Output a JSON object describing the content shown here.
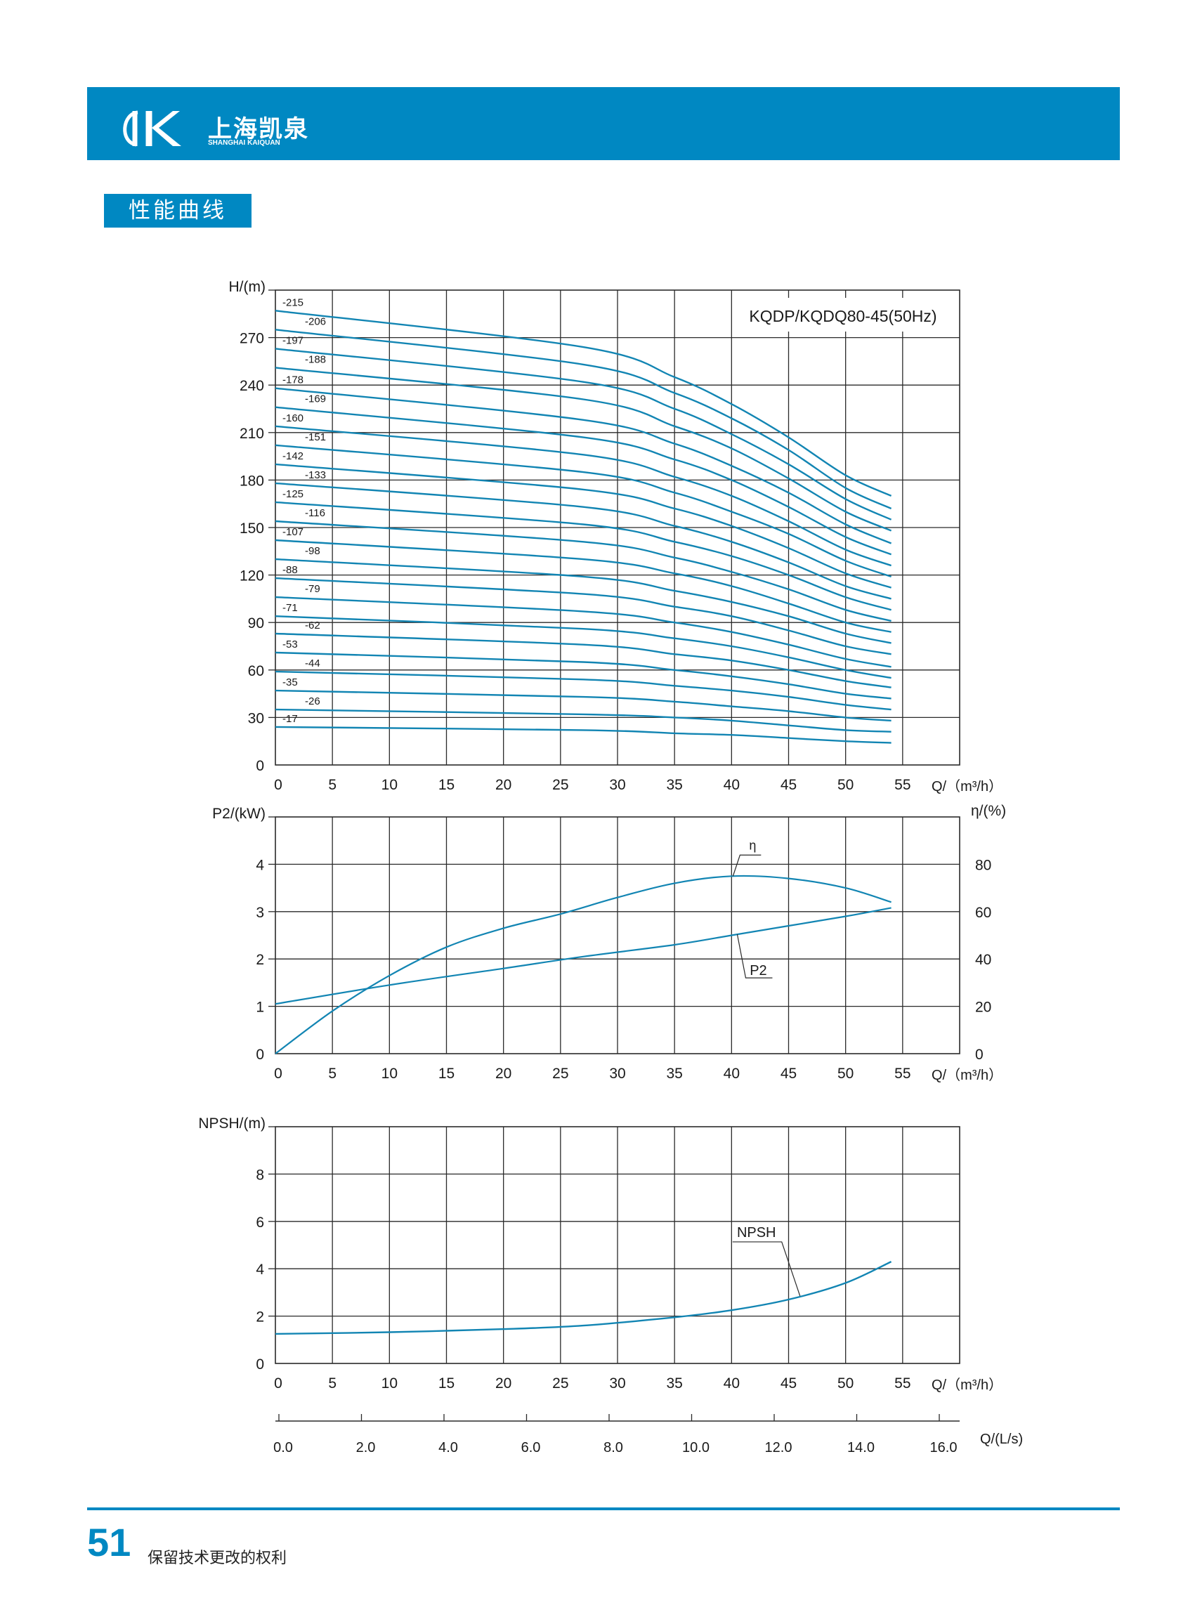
{
  "header": {
    "logo_cn": "上海凯泉",
    "logo_en": "SHANGHAI KAIQUAN",
    "brand_color": "#0088c2"
  },
  "section_title": "性能曲线",
  "footer": {
    "page_number": "51",
    "note": "保留技术更改的权利"
  },
  "chart_data": [
    {
      "type": "line",
      "id": "head",
      "title": "KQDP/KQDQ80-45(50Hz)",
      "ylabel": "H/(m)",
      "xlabel": "Q/（m³/h）",
      "xlim": [
        0,
        60
      ],
      "ylim": [
        0,
        300
      ],
      "x_ticks": [
        0,
        5,
        10,
        15,
        20,
        25,
        30,
        35,
        40,
        45,
        50,
        55
      ],
      "y_ticks": [
        0,
        30,
        60,
        90,
        120,
        150,
        180,
        210,
        240,
        270
      ],
      "grid": true,
      "line_color": "#1285b3",
      "series": [
        {
          "name": "-215",
          "x": [
            0,
            27,
            35,
            40,
            45,
            50,
            54
          ],
          "y": [
            287,
            264,
            245,
            228,
            207,
            183,
            170
          ]
        },
        {
          "name": "-206",
          "x": [
            0,
            27,
            35,
            40,
            45,
            50,
            54
          ],
          "y": [
            275,
            253,
            235,
            219,
            199,
            175,
            162
          ]
        },
        {
          "name": "-197",
          "x": [
            0,
            27,
            35,
            40,
            45,
            50,
            54
          ],
          "y": [
            263,
            242,
            225,
            209,
            190,
            168,
            155
          ]
        },
        {
          "name": "-188",
          "x": [
            0,
            27,
            35,
            40,
            45,
            50,
            54
          ],
          "y": [
            251,
            231,
            214,
            200,
            181,
            160,
            148
          ]
        },
        {
          "name": "-178",
          "x": [
            0,
            27,
            35,
            40,
            45,
            50,
            54
          ],
          "y": [
            238,
            218,
            203,
            189,
            172,
            152,
            140
          ]
        },
        {
          "name": "-169",
          "x": [
            0,
            27,
            35,
            40,
            45,
            50,
            54
          ],
          "y": [
            226,
            207,
            193,
            180,
            163,
            144,
            133
          ]
        },
        {
          "name": "-160",
          "x": [
            0,
            27,
            35,
            40,
            45,
            50,
            54
          ],
          "y": [
            214,
            196,
            182,
            170,
            154,
            136,
            126
          ]
        },
        {
          "name": "-151",
          "x": [
            0,
            27,
            35,
            40,
            45,
            50,
            54
          ],
          "y": [
            202,
            185,
            172,
            160,
            146,
            129,
            119
          ]
        },
        {
          "name": "-142",
          "x": [
            0,
            27,
            35,
            40,
            45,
            50,
            54
          ],
          "y": [
            190,
            174,
            162,
            151,
            137,
            121,
            112
          ]
        },
        {
          "name": "-133",
          "x": [
            0,
            27,
            35,
            40,
            45,
            50,
            54
          ],
          "y": [
            178,
            163,
            151,
            141,
            128,
            113,
            105
          ]
        },
        {
          "name": "-125",
          "x": [
            0,
            27,
            35,
            40,
            45,
            50,
            54
          ],
          "y": [
            166,
            152,
            141,
            132,
            120,
            106,
            98
          ]
        },
        {
          "name": "-116",
          "x": [
            0,
            27,
            35,
            40,
            45,
            50,
            54
          ],
          "y": [
            154,
            141,
            131,
            122,
            111,
            98,
            91
          ]
        },
        {
          "name": "-107",
          "x": [
            0,
            27,
            35,
            40,
            45,
            50,
            54
          ],
          "y": [
            142,
            130,
            121,
            113,
            102,
            90,
            84
          ]
        },
        {
          "name": "-98",
          "x": [
            0,
            27,
            35,
            40,
            45,
            50,
            54
          ],
          "y": [
            130,
            119,
            110,
            103,
            94,
            83,
            77
          ]
        },
        {
          "name": "-88",
          "x": [
            0,
            27,
            35,
            40,
            45,
            50,
            54
          ],
          "y": [
            118,
            108,
            100,
            94,
            85,
            75,
            70
          ]
        },
        {
          "name": "-79",
          "x": [
            0,
            27,
            35,
            40,
            45,
            50,
            54
          ],
          "y": [
            106,
            97,
            90,
            84,
            76,
            67,
            62
          ]
        },
        {
          "name": "-71",
          "x": [
            0,
            27,
            35,
            40,
            45,
            50,
            54
          ],
          "y": [
            94,
            86,
            80,
            75,
            68,
            60,
            55
          ]
        },
        {
          "name": "-62",
          "x": [
            0,
            27,
            35,
            40,
            45,
            50,
            54
          ],
          "y": [
            83,
            76,
            70,
            66,
            60,
            53,
            49
          ]
        },
        {
          "name": "-53",
          "x": [
            0,
            27,
            35,
            40,
            45,
            50,
            54
          ],
          "y": [
            71,
            65,
            60,
            56,
            51,
            45,
            42
          ]
        },
        {
          "name": "-44",
          "x": [
            0,
            27,
            35,
            40,
            45,
            50,
            54
          ],
          "y": [
            59,
            54,
            50,
            47,
            43,
            38,
            35
          ]
        },
        {
          "name": "-35",
          "x": [
            0,
            27,
            35,
            40,
            45,
            50,
            54
          ],
          "y": [
            47,
            43,
            40,
            37,
            34,
            30,
            28
          ]
        },
        {
          "name": "-26",
          "x": [
            0,
            27,
            35,
            40,
            45,
            50,
            54
          ],
          "y": [
            35,
            32,
            30,
            28,
            25,
            22,
            21
          ]
        },
        {
          "name": "-17",
          "x": [
            0,
            27,
            35,
            40,
            45,
            50,
            54
          ],
          "y": [
            24,
            22,
            20,
            19,
            17,
            15,
            14
          ]
        }
      ]
    },
    {
      "type": "line",
      "id": "power",
      "ylabel": "P2/(kW)",
      "ylabel_right": "η/(%)",
      "xlabel": "Q/（m³/h）",
      "xlim": [
        0,
        60
      ],
      "ylim": [
        0,
        5
      ],
      "ylim_right": [
        0,
        100
      ],
      "x_ticks": [
        0,
        5,
        10,
        15,
        20,
        25,
        30,
        35,
        40,
        45,
        50,
        55
      ],
      "y_ticks": [
        0,
        1,
        2,
        3,
        4
      ],
      "y_ticks_right": [
        0,
        20,
        40,
        60,
        80
      ],
      "grid": true,
      "line_color": "#1285b3",
      "series": [
        {
          "name": "P2",
          "axis": "left",
          "x": [
            0,
            10,
            20,
            27,
            35,
            40,
            45,
            50,
            54
          ],
          "y": [
            1.05,
            1.45,
            1.8,
            2.05,
            2.3,
            2.5,
            2.7,
            2.9,
            3.08
          ]
        },
        {
          "name": "η",
          "axis": "right",
          "x": [
            0,
            5,
            10,
            15,
            20,
            25,
            30,
            35,
            40,
            45,
            50,
            54
          ],
          "y": [
            0,
            18,
            33,
            45,
            53,
            59,
            66,
            72,
            75,
            74,
            70,
            64
          ]
        }
      ]
    },
    {
      "type": "line",
      "id": "npsh",
      "ylabel": "NPSH/(m)",
      "xlabel": "Q/（m³/h）",
      "xlabel_secondary": "Q/(L/s)",
      "xlim": [
        0,
        60
      ],
      "ylim": [
        0,
        10
      ],
      "x_ticks": [
        0,
        5,
        10,
        15,
        20,
        25,
        30,
        35,
        40,
        45,
        50,
        55
      ],
      "secondary_x_ticks": [
        "0.0",
        "2.0",
        "4.0",
        "6.0",
        "8.0",
        "10.0",
        "12.0",
        "14.0",
        "16.0"
      ],
      "y_ticks": [
        0,
        2,
        4,
        6,
        8
      ],
      "grid": true,
      "line_color": "#1285b3",
      "series": [
        {
          "name": "NPSH",
          "x": [
            0,
            10,
            20,
            27,
            35,
            40,
            45,
            50,
            54
          ],
          "y": [
            1.25,
            1.32,
            1.45,
            1.6,
            1.95,
            2.25,
            2.7,
            3.4,
            4.3
          ]
        }
      ]
    }
  ]
}
